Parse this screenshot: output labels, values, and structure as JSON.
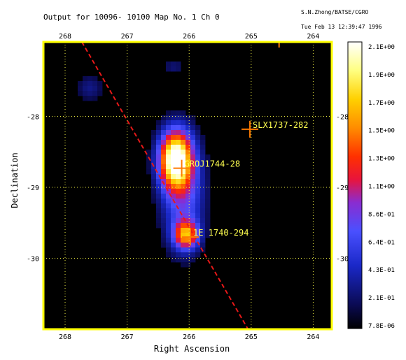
{
  "header": {
    "title": "Output for   10096-  10100 Map No. 1 Ch 0",
    "credit": "S.N.Zhong/BATSE/CGRO",
    "timestamp": "Tue Feb 13 12:39:47 1996"
  },
  "chart_data": {
    "type": "heatmap",
    "xlabel": "Right Ascension",
    "ylabel": "Declination",
    "xlim": [
      268.35,
      263.7
    ],
    "ylim": [
      -31.0,
      -26.95
    ],
    "x_ticks": [
      268,
      267,
      266,
      265,
      264
    ],
    "y_ticks": [
      -28,
      -29,
      -30
    ],
    "grid": true,
    "colorbar": {
      "min": 7.8e-06,
      "max": 2.1,
      "tick_labels": [
        "2.1E+00",
        "1.9E+00",
        "1.7E+00",
        "1.5E+00",
        "1.3E+00",
        "1.1E+00",
        "8.6E-01",
        "6.4E-01",
        "4.3E-01",
        "2.1E-01",
        "7.8E-06"
      ]
    },
    "sources": [
      {
        "name": "SLX1737-282",
        "ra": 265.02,
        "dec": -28.18
      },
      {
        "name": "GROJ1744-28",
        "ra": 266.12,
        "dec": -28.73
      },
      {
        "name": "1E 1740-294",
        "ra": 265.98,
        "dec": -29.7
      }
    ],
    "galactic_plane": {
      "from": [
        267.73,
        -26.95
      ],
      "to": [
        265.05,
        -31.0
      ]
    },
    "emission_peaks": [
      {
        "ra": 266.22,
        "dec": -28.6,
        "intensity": 2.1
      },
      {
        "ra": 266.05,
        "dec": -29.67,
        "intensity": 1.3
      },
      {
        "ra": 266.1,
        "dec": -29.1,
        "intensity": 0.75
      },
      {
        "ra": 267.6,
        "dec": -27.6,
        "intensity": 0.3
      },
      {
        "ra": 266.25,
        "dec": -27.3,
        "intensity": 0.25
      }
    ],
    "top_marker_ra": 264.55
  },
  "colors": {
    "frame": "#FFFF00",
    "grid": "#E8E840",
    "background": "#000000",
    "source_marker": "#FF7A00",
    "source_label": "#FFFF50",
    "plane_line": "#E81818"
  }
}
